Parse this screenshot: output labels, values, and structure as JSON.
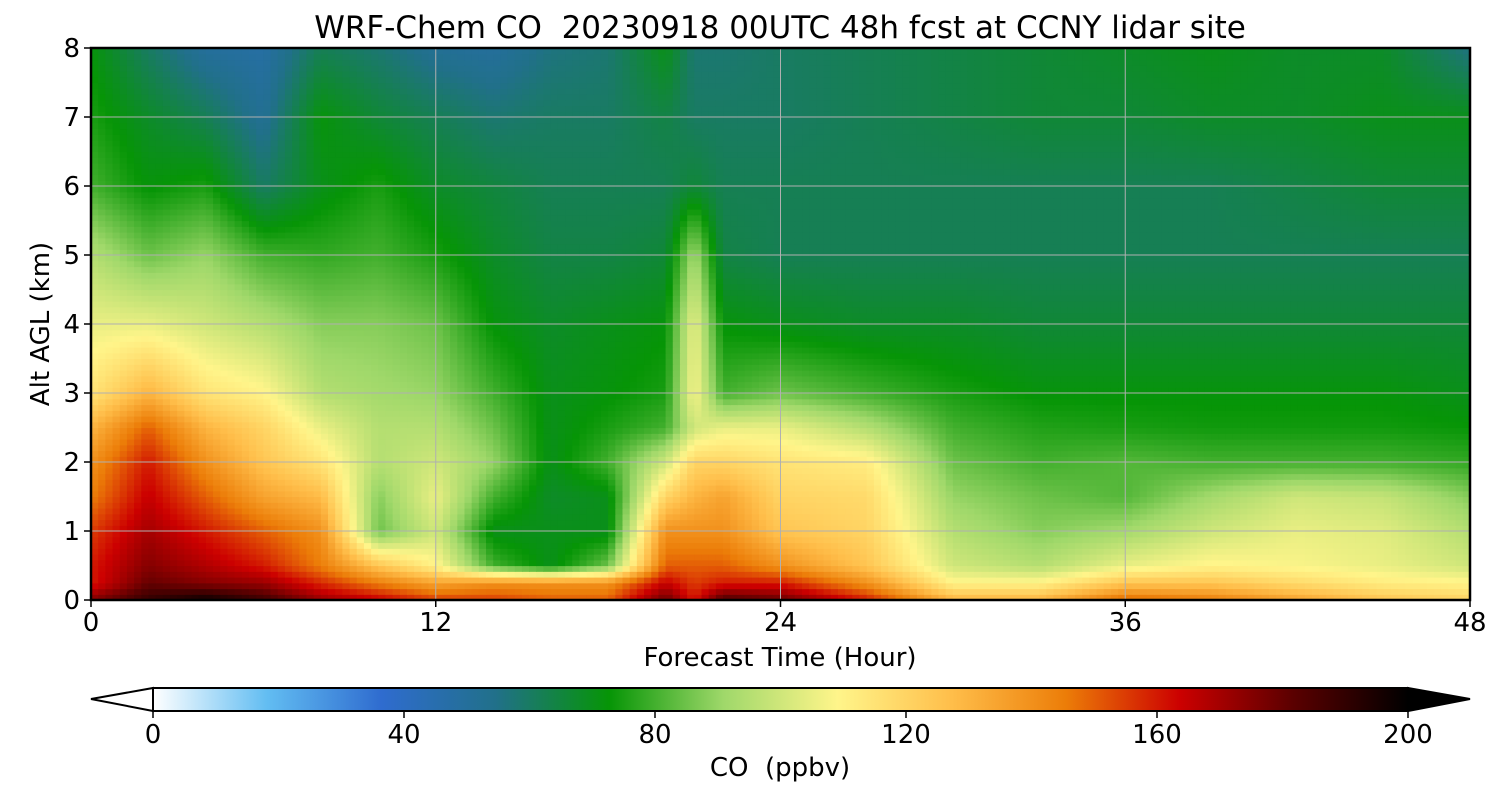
{
  "chart_data": {
    "type": "heatmap",
    "title": "WRF-Chem CO  20230918 00UTC 48h fcst at CCNY lidar site",
    "xlabel": "Forecast Time (Hour)",
    "ylabel": "Alt AGL (km)",
    "xlim": [
      0,
      48
    ],
    "ylim": [
      0,
      8
    ],
    "x_ticks": [
      0,
      12,
      24,
      36,
      48
    ],
    "y_ticks": [
      0,
      1,
      2,
      3,
      4,
      5,
      6,
      7,
      8
    ],
    "grid": true,
    "colorbar": {
      "label": "CO  (ppbv)",
      "range": [
        0,
        200
      ],
      "ticks": [
        0,
        40,
        80,
        120,
        160,
        200
      ],
      "extend": "both",
      "colors": [
        "#ffffff",
        "#62bdf2",
        "#2f6ccf",
        "#21708a",
        "#069506",
        "#9fd86a",
        "#fff58a",
        "#ffbe4a",
        "#ec7d08",
        "#cc0000",
        "#5a0000",
        "#000000"
      ]
    },
    "x_hours": [
      0,
      2,
      4,
      6,
      8,
      10,
      12,
      14,
      16,
      18,
      20,
      21,
      22,
      24,
      27,
      30,
      33,
      36,
      39,
      42,
      45,
      48
    ],
    "z_alts_km": [
      0,
      0.25,
      0.5,
      1,
      1.5,
      2,
      2.5,
      3,
      4,
      5,
      6,
      7,
      8
    ],
    "co_ppbv": [
      [
        175,
        190,
        198,
        188,
        172,
        165,
        155,
        155,
        150,
        150,
        180,
        160,
        185,
        180,
        160,
        130,
        130,
        150,
        145,
        135,
        125,
        120
      ],
      [
        160,
        180,
        175,
        172,
        158,
        145,
        135,
        140,
        140,
        140,
        165,
        155,
        160,
        160,
        140,
        110,
        110,
        125,
        125,
        118,
        112,
        110
      ],
      [
        160,
        175,
        168,
        160,
        145,
        125,
        110,
        80,
        70,
        85,
        150,
        150,
        150,
        140,
        125,
        100,
        95,
        105,
        110,
        108,
        105,
        100
      ],
      [
        155,
        170,
        160,
        150,
        140,
        85,
        100,
        70,
        70,
        70,
        140,
        140,
        140,
        125,
        120,
        95,
        88,
        92,
        100,
        105,
        103,
        95
      ],
      [
        145,
        165,
        150,
        135,
        128,
        88,
        105,
        80,
        68,
        70,
        120,
        130,
        135,
        120,
        118,
        90,
        85,
        82,
        92,
        100,
        98,
        88
      ],
      [
        140,
        160,
        140,
        125,
        115,
        95,
        100,
        90,
        70,
        80,
        100,
        120,
        120,
        115,
        112,
        85,
        80,
        82,
        80,
        80,
        80,
        78
      ],
      [
        130,
        150,
        130,
        120,
        105,
        95,
        95,
        85,
        70,
        75,
        80,
        100,
        105,
        105,
        95,
        80,
        76,
        75,
        74,
        74,
        74,
        73
      ],
      [
        115,
        130,
        115,
        110,
        95,
        92,
        90,
        80,
        70,
        72,
        75,
        108,
        80,
        85,
        80,
        75,
        72,
        72,
        72,
        72,
        72,
        70
      ],
      [
        105,
        105,
        100,
        95,
        88,
        88,
        85,
        72,
        68,
        70,
        72,
        105,
        72,
        70,
        68,
        68,
        66,
        66,
        66,
        66,
        66,
        66
      ],
      [
        95,
        85,
        90,
        80,
        78,
        80,
        75,
        68,
        64,
        64,
        66,
        92,
        64,
        62,
        62,
        62,
        62,
        62,
        62,
        62,
        62,
        62
      ],
      [
        80,
        72,
        75,
        60,
        70,
        75,
        68,
        65,
        62,
        62,
        62,
        66,
        62,
        62,
        62,
        62,
        62,
        62,
        62,
        64,
        66,
        66
      ],
      [
        75,
        68,
        62,
        52,
        72,
        66,
        62,
        58,
        60,
        60,
        64,
        60,
        60,
        60,
        62,
        64,
        66,
        66,
        68,
        68,
        70,
        70
      ],
      [
        72,
        60,
        50,
        48,
        62,
        58,
        52,
        50,
        56,
        58,
        70,
        58,
        58,
        60,
        62,
        64,
        66,
        68,
        70,
        68,
        68,
        56
      ]
    ]
  }
}
